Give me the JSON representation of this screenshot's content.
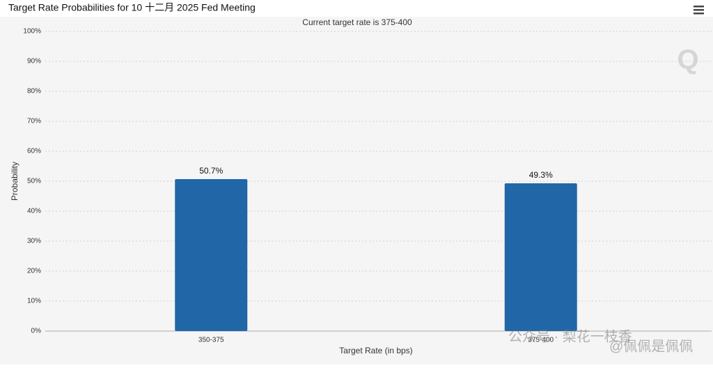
{
  "chart_data": {
    "type": "bar",
    "title": "Target Rate Probabilities for 10 十二月 2025 Fed Meeting",
    "subtitle": "Current target rate is 375-400",
    "x_label": "Target Rate (in bps)",
    "y_label": "Probability",
    "categories": [
      "350-375",
      "375-400"
    ],
    "values": [
      50.7,
      49.3
    ],
    "value_labels": [
      "50.7%",
      "49.3%"
    ],
    "color": "#2167a8",
    "ylim": [
      0,
      100
    ],
    "yticks": [
      {
        "value": 0,
        "label": "0%"
      },
      {
        "value": 10,
        "label": "10%"
      },
      {
        "value": 20,
        "label": "20%"
      },
      {
        "value": 30,
        "label": "30%"
      },
      {
        "value": 40,
        "label": "40%"
      },
      {
        "value": 50,
        "label": "50%"
      },
      {
        "value": 60,
        "label": "60%"
      },
      {
        "value": 70,
        "label": "70%"
      },
      {
        "value": 80,
        "label": "80%"
      },
      {
        "value": 90,
        "label": "90%"
      },
      {
        "value": 100,
        "label": "100%"
      }
    ],
    "grid": true,
    "watermark": [
      "公众号 · 梨花一枝香",
      "@佩佩是佩佩"
    ]
  }
}
